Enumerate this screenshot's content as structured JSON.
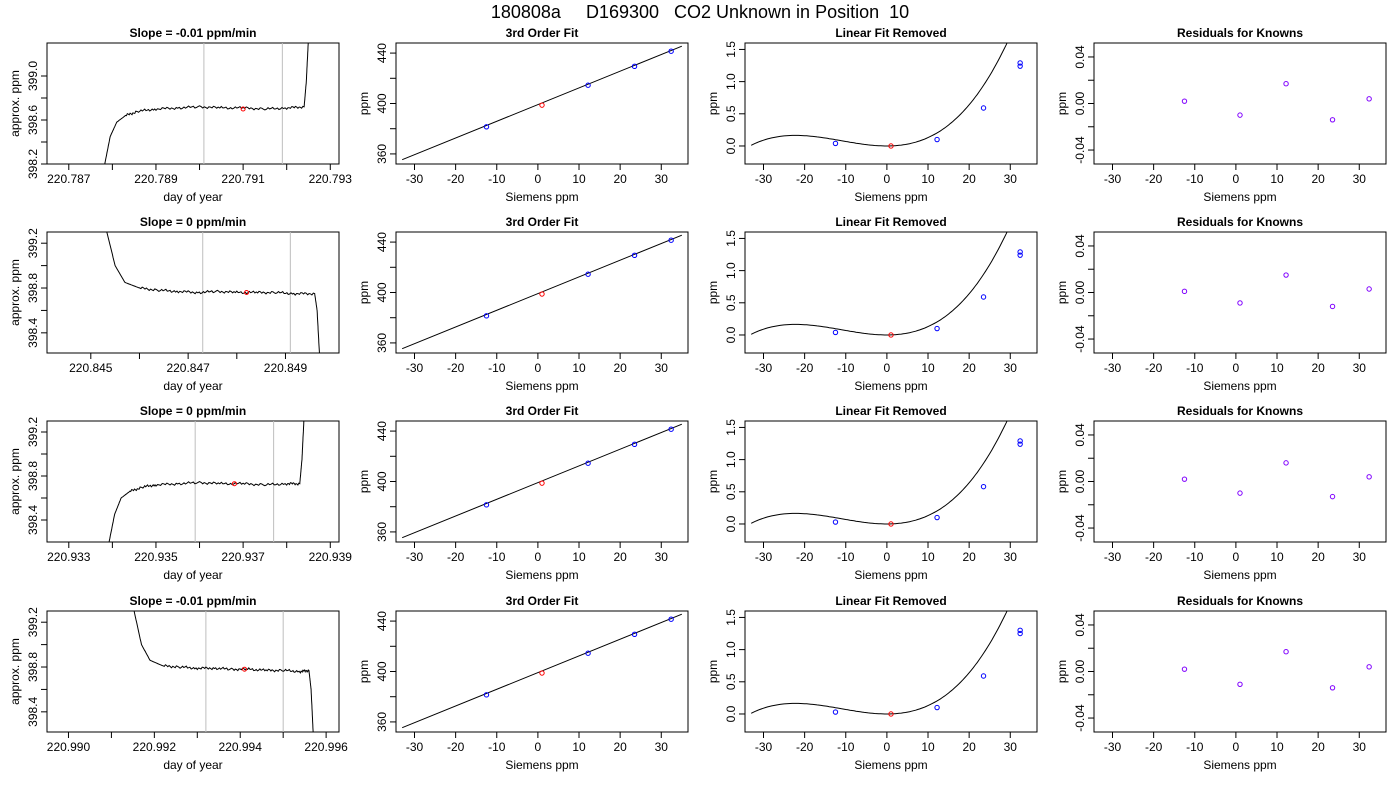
{
  "page": {
    "title": "180808a     D169300   CO2 Unknown in Position  10"
  },
  "colors": {
    "unknown_point": "#ff0000",
    "known_point": "#0000ff",
    "residual_point": "#8000ff",
    "window_line": "#bebebe",
    "axis": "#000000"
  },
  "chart_data": [
    {
      "type": "line",
      "panel": "timeseries",
      "row": 1,
      "title": "Slope =  -0.01  ppm/min",
      "xlabel": "day of year",
      "ylabel": "approx. ppm",
      "xlim": [
        220.7865,
        220.7932
      ],
      "ylim": [
        398.2,
        399.3
      ],
      "xticks": [
        220.787,
        220.788,
        220.789,
        220.79,
        220.791,
        220.792,
        220.793
      ],
      "xtick_labels": [
        "220.787",
        "",
        "220.789",
        "",
        "220.791",
        "",
        "220.793"
      ],
      "yticks": [
        398.2,
        398.4,
        398.6,
        398.8,
        399.0
      ],
      "ytick_labels": [
        "398.2",
        "",
        "398.6",
        "",
        "399.0"
      ],
      "vlines": [
        220.7901,
        220.7919
      ],
      "marker": {
        "x": 220.791,
        "y": 398.7
      },
      "series": [
        {
          "x": [
            220.7878,
            220.78795,
            220.7881,
            220.7883,
            220.7886,
            220.789,
            220.7895,
            220.79,
            220.7905,
            220.791,
            220.7915,
            220.792,
            220.7924,
            220.79245,
            220.7925
          ],
          "y": [
            398.15,
            398.45,
            398.58,
            398.64,
            398.68,
            398.7,
            398.71,
            398.72,
            398.71,
            398.71,
            398.7,
            398.71,
            398.72,
            398.95,
            399.35
          ]
        }
      ]
    },
    {
      "type": "scatter",
      "panel": "fit",
      "row": 1,
      "title": "3rd Order Fit",
      "xlabel": "Siemens ppm",
      "ylabel": "ppm",
      "xlim": [
        -34.5,
        36.5
      ],
      "ylim": [
        352,
        448
      ],
      "xticks": [
        -30,
        -20,
        -10,
        0,
        10,
        20,
        30
      ],
      "xtick_labels": [
        "-30",
        "-20",
        "-10",
        "0",
        "10",
        "20",
        "30"
      ],
      "yticks": [
        360,
        380,
        400,
        420,
        440
      ],
      "ytick_labels": [
        "360",
        "",
        "400",
        "",
        "440"
      ],
      "fit_line": {
        "x": [
          -33,
          35
        ],
        "y": [
          355.4,
          445.5
        ]
      },
      "known_x": [
        -12.5,
        12.2,
        23.5,
        32.4
      ],
      "known_y": [
        381.5,
        414.5,
        429.5,
        441.5
      ],
      "unknown": {
        "x": 1,
        "y": 398.7
      }
    },
    {
      "type": "scatter",
      "panel": "linear_removed",
      "row": 1,
      "title": "Linear Fit Removed",
      "xlabel": "Siemens ppm",
      "ylabel": "ppm",
      "xlim": [
        -34.5,
        36.5
      ],
      "ylim": [
        -0.28,
        1.6
      ],
      "xticks": [
        -30,
        -20,
        -10,
        0,
        10,
        20,
        30
      ],
      "xtick_labels": [
        "-30",
        "-20",
        "-10",
        "0",
        "10",
        "20",
        "30"
      ],
      "yticks": [
        0,
        0.5,
        1.0,
        1.5
      ],
      "ytick_labels": [
        "0.0",
        "0.5",
        "1.0",
        "1.5"
      ],
      "curve_cubic": [
        3e-05,
        0.001,
        0.0,
        0.0
      ],
      "curve_xrange": [
        -33,
        35
      ],
      "known_x": [
        -12.5,
        12.2,
        23.5,
        32.4,
        32.4
      ],
      "known_y": [
        0.04,
        0.1,
        0.59,
        1.24,
        1.29
      ],
      "unknown": {
        "x": 1,
        "y": 0.0
      }
    },
    {
      "type": "scatter",
      "panel": "residuals",
      "row": 1,
      "title": "Residuals for Knowns",
      "xlabel": "Siemens ppm",
      "ylabel": "ppm",
      "xlim": [
        -34.5,
        36.5
      ],
      "ylim": [
        -0.052,
        0.052
      ],
      "xticks": [
        -30,
        -20,
        -10,
        0,
        10,
        20,
        30
      ],
      "xtick_labels": [
        "-30",
        "-20",
        "-10",
        "0",
        "10",
        "20",
        "30"
      ],
      "yticks": [
        -0.04,
        -0.02,
        0,
        0.02,
        0.04
      ],
      "ytick_labels": [
        "-0.04",
        "",
        "0.00",
        "",
        "0.04"
      ],
      "x": [
        -12.5,
        1,
        12.2,
        23.5,
        32.4
      ],
      "y": [
        0.002,
        -0.01,
        0.017,
        -0.014,
        0.004
      ]
    },
    {
      "type": "line",
      "panel": "timeseries",
      "row": 2,
      "title": "Slope =  0  ppm/min",
      "xlabel": "day of year",
      "ylabel": "approx. ppm",
      "xlim": [
        220.8441,
        220.8501
      ],
      "ylim": [
        398.22,
        399.3
      ],
      "xticks": [
        220.845,
        220.846,
        220.847,
        220.848,
        220.849
      ],
      "xtick_labels": [
        "220.845",
        "",
        "220.847",
        "",
        "220.849"
      ],
      "yticks": [
        398.4,
        398.6,
        398.8,
        399.0,
        399.2
      ],
      "ytick_labels": [
        "398.4",
        "",
        "398.8",
        "",
        "399.2"
      ],
      "vlines": [
        220.8473,
        220.8491
      ],
      "marker": {
        "x": 220.8482,
        "y": 398.76
      },
      "series": [
        {
          "x": [
            220.8453,
            220.8455,
            220.8457,
            220.846,
            220.8464,
            220.8468,
            220.8472,
            220.8476,
            220.848,
            220.8484,
            220.8488,
            220.8492,
            220.8496,
            220.84965,
            220.8497
          ],
          "y": [
            399.35,
            399.0,
            398.85,
            398.8,
            398.78,
            398.77,
            398.76,
            398.77,
            398.76,
            398.76,
            398.76,
            398.75,
            398.75,
            398.6,
            398.2
          ]
        }
      ]
    },
    {
      "type": "scatter",
      "panel": "fit",
      "row": 2,
      "title": "3rd Order Fit",
      "xlabel": "Siemens ppm",
      "ylabel": "ppm",
      "xlim": [
        -34.5,
        36.5
      ],
      "ylim": [
        352,
        448
      ],
      "xticks": [
        -30,
        -20,
        -10,
        0,
        10,
        20,
        30
      ],
      "xtick_labels": [
        "-30",
        "-20",
        "-10",
        "0",
        "10",
        "20",
        "30"
      ],
      "yticks": [
        360,
        380,
        400,
        420,
        440
      ],
      "ytick_labels": [
        "360",
        "",
        "400",
        "",
        "440"
      ],
      "fit_line": {
        "x": [
          -33,
          35
        ],
        "y": [
          355.4,
          445.5
        ]
      },
      "known_x": [
        -12.5,
        12.2,
        23.5,
        32.4
      ],
      "known_y": [
        381.5,
        414.5,
        429.5,
        441.5
      ],
      "unknown": {
        "x": 1,
        "y": 398.8
      }
    },
    {
      "type": "scatter",
      "panel": "linear_removed",
      "row": 2,
      "title": "Linear Fit Removed",
      "xlabel": "Siemens ppm",
      "ylabel": "ppm",
      "xlim": [
        -34.5,
        36.5
      ],
      "ylim": [
        -0.28,
        1.6
      ],
      "xticks": [
        -30,
        -20,
        -10,
        0,
        10,
        20,
        30
      ],
      "xtick_labels": [
        "-30",
        "-20",
        "-10",
        "0",
        "10",
        "20",
        "30"
      ],
      "yticks": [
        0,
        0.5,
        1.0,
        1.5
      ],
      "ytick_labels": [
        "0.0",
        "0.5",
        "1.0",
        "1.5"
      ],
      "curve_cubic": [
        3e-05,
        0.001,
        0.0,
        0.0
      ],
      "curve_xrange": [
        -33,
        35
      ],
      "known_x": [
        -12.5,
        12.2,
        23.5,
        32.4,
        32.4
      ],
      "known_y": [
        0.04,
        0.1,
        0.59,
        1.24,
        1.29
      ],
      "unknown": {
        "x": 1,
        "y": 0.0
      }
    },
    {
      "type": "scatter",
      "panel": "residuals",
      "row": 2,
      "title": "Residuals for Knowns",
      "xlabel": "Siemens ppm",
      "ylabel": "ppm",
      "xlim": [
        -34.5,
        36.5
      ],
      "ylim": [
        -0.052,
        0.052
      ],
      "xticks": [
        -30,
        -20,
        -10,
        0,
        10,
        20,
        30
      ],
      "xtick_labels": [
        "-30",
        "-20",
        "-10",
        "0",
        "10",
        "20",
        "30"
      ],
      "yticks": [
        -0.04,
        -0.02,
        0,
        0.02,
        0.04
      ],
      "ytick_labels": [
        "-0.04",
        "",
        "0.00",
        "",
        "0.04"
      ],
      "x": [
        -12.5,
        1,
        12.2,
        23.5,
        32.4
      ],
      "y": [
        0.001,
        -0.009,
        0.015,
        -0.012,
        0.003
      ]
    },
    {
      "type": "line",
      "panel": "timeseries",
      "row": 3,
      "title": "Slope =  0  ppm/min",
      "xlabel": "day of year",
      "ylabel": "approx. ppm",
      "xlim": [
        220.9325,
        220.9392
      ],
      "ylim": [
        398.2,
        399.3
      ],
      "xticks": [
        220.933,
        220.934,
        220.935,
        220.936,
        220.937,
        220.938,
        220.939
      ],
      "xtick_labels": [
        "220.933",
        "",
        "220.935",
        "",
        "220.937",
        "",
        "220.939"
      ],
      "yticks": [
        398.4,
        398.6,
        398.8,
        399.0,
        399.2
      ],
      "ytick_labels": [
        "398.4",
        "",
        "398.8",
        "",
        "399.2"
      ],
      "vlines": [
        220.9359,
        220.9377
      ],
      "marker": {
        "x": 220.9368,
        "y": 398.73
      },
      "series": [
        {
          "x": [
            220.9339,
            220.93405,
            220.9342,
            220.9344,
            220.9347,
            220.935,
            220.9355,
            220.936,
            220.9365,
            220.937,
            220.9375,
            220.938,
            220.9383,
            220.93835,
            220.9384
          ],
          "y": [
            398.15,
            398.45,
            398.6,
            398.66,
            398.7,
            398.72,
            398.73,
            398.74,
            398.73,
            398.73,
            398.72,
            398.73,
            398.73,
            398.95,
            399.35
          ]
        }
      ]
    },
    {
      "type": "scatter",
      "panel": "fit",
      "row": 3,
      "title": "3rd Order Fit",
      "xlabel": "Siemens ppm",
      "ylabel": "ppm",
      "xlim": [
        -34.5,
        36.5
      ],
      "ylim": [
        352,
        448
      ],
      "xticks": [
        -30,
        -20,
        -10,
        0,
        10,
        20,
        30
      ],
      "xtick_labels": [
        "-30",
        "-20",
        "-10",
        "0",
        "10",
        "20",
        "30"
      ],
      "yticks": [
        360,
        380,
        400,
        420,
        440
      ],
      "ytick_labels": [
        "360",
        "",
        "400",
        "",
        "440"
      ],
      "fit_line": {
        "x": [
          -33,
          35
        ],
        "y": [
          355.4,
          445.5
        ]
      },
      "known_x": [
        -12.5,
        12.2,
        23.5,
        32.4
      ],
      "known_y": [
        381.5,
        414.5,
        429.5,
        441.5
      ],
      "unknown": {
        "x": 1,
        "y": 398.7
      }
    },
    {
      "type": "scatter",
      "panel": "linear_removed",
      "row": 3,
      "title": "Linear Fit Removed",
      "xlabel": "Siemens ppm",
      "ylabel": "ppm",
      "xlim": [
        -34.5,
        36.5
      ],
      "ylim": [
        -0.28,
        1.6
      ],
      "xticks": [
        -30,
        -20,
        -10,
        0,
        10,
        20,
        30
      ],
      "xtick_labels": [
        "-30",
        "-20",
        "-10",
        "0",
        "10",
        "20",
        "30"
      ],
      "yticks": [
        0,
        0.5,
        1.0,
        1.5
      ],
      "ytick_labels": [
        "0.0",
        "0.5",
        "1.0",
        "1.5"
      ],
      "curve_cubic": [
        3e-05,
        0.001,
        0.0,
        0.0
      ],
      "curve_xrange": [
        -33,
        35
      ],
      "known_x": [
        -12.5,
        12.2,
        23.5,
        32.4,
        32.4
      ],
      "known_y": [
        0.03,
        0.1,
        0.58,
        1.24,
        1.29
      ],
      "unknown": {
        "x": 1,
        "y": 0.0
      }
    },
    {
      "type": "scatter",
      "panel": "residuals",
      "row": 3,
      "title": "Residuals for Knowns",
      "xlabel": "Siemens ppm",
      "ylabel": "ppm",
      "xlim": [
        -34.5,
        36.5
      ],
      "ylim": [
        -0.052,
        0.052
      ],
      "xticks": [
        -30,
        -20,
        -10,
        0,
        10,
        20,
        30
      ],
      "xtick_labels": [
        "-30",
        "-20",
        "-10",
        "0",
        "10",
        "20",
        "30"
      ],
      "yticks": [
        -0.04,
        -0.02,
        0,
        0.02,
        0.04
      ],
      "ytick_labels": [
        "-0.04",
        "",
        "0.00",
        "",
        "0.04"
      ],
      "x": [
        -12.5,
        1,
        12.2,
        23.5,
        32.4
      ],
      "y": [
        0.002,
        -0.01,
        0.016,
        -0.013,
        0.004
      ]
    },
    {
      "type": "line",
      "panel": "timeseries",
      "row": 4,
      "title": "Slope =  -0.01  ppm/min",
      "xlabel": "day of year",
      "ylabel": "approx. ppm",
      "xlim": [
        220.9895,
        220.9963
      ],
      "ylim": [
        398.22,
        399.3
      ],
      "xticks": [
        220.99,
        220.991,
        220.992,
        220.993,
        220.994,
        220.995,
        220.996
      ],
      "xtick_labels": [
        "220.990",
        "",
        "220.992",
        "",
        "220.994",
        "",
        "220.996"
      ],
      "yticks": [
        398.4,
        398.6,
        398.8,
        399.0,
        399.2
      ],
      "ytick_labels": [
        "398.4",
        "",
        "398.8",
        "",
        "399.2"
      ],
      "vlines": [
        220.9932,
        220.995
      ],
      "marker": {
        "x": 220.9941,
        "y": 398.78
      },
      "series": [
        {
          "x": [
            220.9915,
            220.9917,
            220.9919,
            220.9922,
            220.9926,
            220.993,
            220.9934,
            220.9938,
            220.9942,
            220.9946,
            220.995,
            220.9954,
            220.9956,
            220.99565,
            220.9957
          ],
          "y": [
            399.35,
            399.0,
            398.86,
            398.81,
            398.8,
            398.79,
            398.79,
            398.78,
            398.78,
            398.77,
            398.77,
            398.76,
            398.77,
            398.6,
            398.2
          ]
        }
      ]
    },
    {
      "type": "scatter",
      "panel": "fit",
      "row": 4,
      "title": "3rd Order Fit",
      "xlabel": "Siemens ppm",
      "ylabel": "ppm",
      "xlim": [
        -34.5,
        36.5
      ],
      "ylim": [
        352,
        448
      ],
      "xticks": [
        -30,
        -20,
        -10,
        0,
        10,
        20,
        30
      ],
      "xtick_labels": [
        "-30",
        "-20",
        "-10",
        "0",
        "10",
        "20",
        "30"
      ],
      "yticks": [
        360,
        380,
        400,
        420,
        440
      ],
      "ytick_labels": [
        "360",
        "",
        "400",
        "",
        "440"
      ],
      "fit_line": {
        "x": [
          -33,
          35
        ],
        "y": [
          355.4,
          445.5
        ]
      },
      "known_x": [
        -12.5,
        12.2,
        23.5,
        32.4
      ],
      "known_y": [
        381.5,
        414.5,
        429.5,
        441.5
      ],
      "unknown": {
        "x": 1,
        "y": 398.8
      }
    },
    {
      "type": "scatter",
      "panel": "linear_removed",
      "row": 4,
      "title": "Linear Fit Removed",
      "xlabel": "Siemens ppm",
      "ylabel": "ppm",
      "xlim": [
        -34.5,
        36.5
      ],
      "ylim": [
        -0.28,
        1.6
      ],
      "xticks": [
        -30,
        -20,
        -10,
        0,
        10,
        20,
        30
      ],
      "xtick_labels": [
        "-30",
        "-20",
        "-10",
        "0",
        "10",
        "20",
        "30"
      ],
      "yticks": [
        0,
        0.5,
        1.0,
        1.5
      ],
      "ytick_labels": [
        "0.0",
        "0.5",
        "1.0",
        "1.5"
      ],
      "curve_cubic": [
        3e-05,
        0.001,
        0.0,
        0.0
      ],
      "curve_xrange": [
        -33,
        35
      ],
      "known_x": [
        -12.5,
        12.2,
        23.5,
        32.4,
        32.4
      ],
      "known_y": [
        0.03,
        0.1,
        0.59,
        1.25,
        1.3
      ],
      "unknown": {
        "x": 1,
        "y": 0.0
      }
    },
    {
      "type": "scatter",
      "panel": "residuals",
      "row": 4,
      "title": "Residuals for Knowns",
      "xlabel": "Siemens ppm",
      "ylabel": "ppm",
      "xlim": [
        -34.5,
        36.5
      ],
      "ylim": [
        -0.052,
        0.052
      ],
      "xticks": [
        -30,
        -20,
        -10,
        0,
        10,
        20,
        30
      ],
      "xtick_labels": [
        "-30",
        "-20",
        "-10",
        "0",
        "10",
        "20",
        "30"
      ],
      "yticks": [
        -0.04,
        -0.02,
        0,
        0.02,
        0.04
      ],
      "ytick_labels": [
        "-0.04",
        "",
        "0.00",
        "",
        "0.04"
      ],
      "x": [
        -12.5,
        1,
        12.2,
        23.5,
        32.4
      ],
      "y": [
        0.002,
        -0.011,
        0.017,
        -0.014,
        0.004
      ]
    }
  ]
}
